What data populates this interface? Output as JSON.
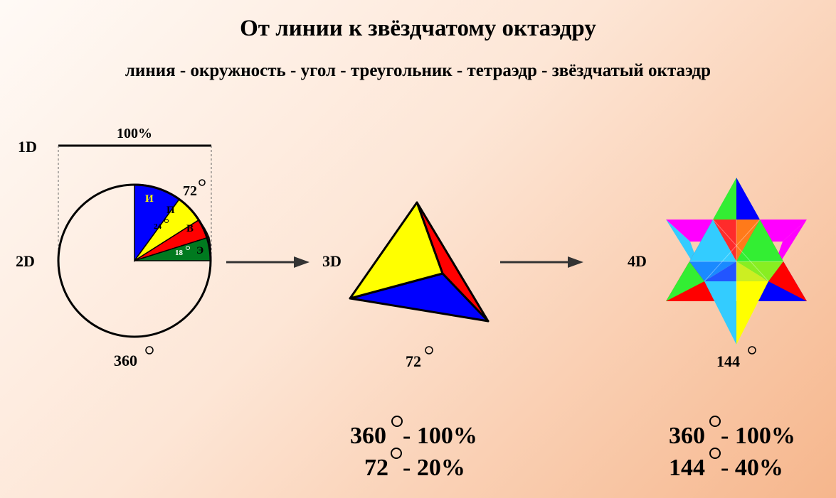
{
  "header": {
    "title": "От линии к звёздчатому октаэдру",
    "subtitle": "линия - окружность - угол - треугольник - тетраэдр - звёздчатый октаэдр"
  },
  "line": {
    "dimension": "1D",
    "percent": "100%"
  },
  "circle": {
    "dimension": "2D",
    "total_angle": "360",
    "sector_angle": "72",
    "inner_angle_24": "24",
    "inner_angle_18": "18",
    "sector_letters": [
      "И",
      "П",
      "В",
      "Э"
    ]
  },
  "tetrahedron": {
    "dimension": "3D",
    "angle": "72"
  },
  "star": {
    "dimension": "4D",
    "angle": "144"
  },
  "ratios_3d": {
    "line1_deg": "360",
    "line1_pct": "- 100%",
    "line2_deg": "72",
    "line2_pct": "- 20%"
  },
  "ratios_4d": {
    "line1_deg": "360",
    "line1_pct": "- 100%",
    "line2_deg": "144",
    "line2_pct": "- 40%"
  },
  "colors": {
    "blue": "#0000ff",
    "yellow": "#ffff00",
    "red": "#ff0000",
    "green": "#007a1f",
    "magenta": "#ff00ff",
    "cyan": "#33ccff",
    "lime": "#33ee33"
  }
}
